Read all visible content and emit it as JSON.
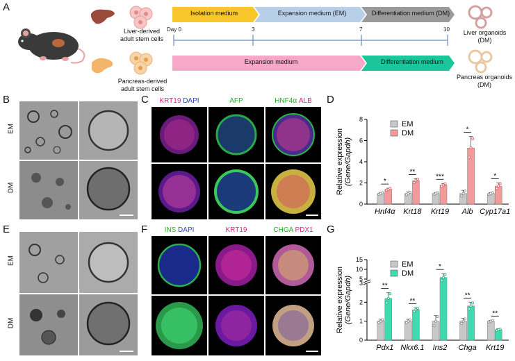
{
  "panels": {
    "A": "A",
    "B": "B",
    "C": "C",
    "D": "D",
    "E": "E",
    "F": "F",
    "G": "G"
  },
  "schematic": {
    "liver_cells": "Liver-derived\nadult stem cells",
    "pancreas_cells": "Pancreas-derived\nadult stem cells",
    "liver_bar": [
      "Isolation medium",
      "Expansion medium (EM)",
      "Differentiation medium (DM)"
    ],
    "pancreas_bar": [
      "Expansion medium",
      "Differentiation medium"
    ],
    "days": [
      "Day 0",
      "3",
      "7",
      "10"
    ],
    "liver_out": "Liver organoids\n(DM)",
    "pancreas_out": "Pancreas organoids\n(DM)",
    "colors": {
      "isolation": "#f7c62a",
      "expansion": "#b8cfe9",
      "differentiation": "#9a9a9a",
      "panc_expansion": "#f7a8c8",
      "panc_diff": "#1bc79a"
    }
  },
  "rows": {
    "em": "EM",
    "dm": "DM"
  },
  "C_channels": [
    {
      "parts": [
        {
          "t": "KRT19 ",
          "c": "#e0218a"
        },
        {
          "t": "DAPI",
          "c": "#2a3bd8"
        }
      ]
    },
    {
      "parts": [
        {
          "t": "AFP",
          "c": "#20b020"
        }
      ]
    },
    {
      "parts": [
        {
          "t": "HNF4α ",
          "c": "#20b020"
        },
        {
          "t": "ALB",
          "c": "#e0218a"
        }
      ]
    }
  ],
  "F_channels": [
    {
      "parts": [
        {
          "t": "INS ",
          "c": "#20b020"
        },
        {
          "t": "DAPI",
          "c": "#2a3bd8"
        }
      ]
    },
    {
      "parts": [
        {
          "t": "KRT19",
          "c": "#e0218a"
        }
      ]
    },
    {
      "parts": [
        {
          "t": "CHGA ",
          "c": "#20b020"
        },
        {
          "t": "PDX1",
          "c": "#e0218a"
        }
      ]
    }
  ],
  "chart_data": [
    {
      "panel": "D",
      "type": "bar",
      "ylabel": "Relative expression\n(Gene/Gapdh)",
      "ylim": [
        0,
        8
      ],
      "yticks": [
        0,
        2,
        4,
        6,
        8
      ],
      "categories": [
        "Hnf4α",
        "Krt18",
        "Krt19",
        "Alb",
        "Cyp17a1"
      ],
      "legend": [
        "EM",
        "DM"
      ],
      "series": [
        {
          "name": "EM",
          "values": [
            1.0,
            1.0,
            1.0,
            1.0,
            1.0
          ],
          "color": "#c8c8c8"
        },
        {
          "name": "DM",
          "values": [
            1.4,
            2.2,
            1.8,
            5.3,
            1.7
          ],
          "color": "#f59a9a"
        }
      ],
      "errors": {
        "EM": [
          0.1,
          0.15,
          0.1,
          0.3,
          0.1
        ],
        "DM": [
          0.1,
          0.2,
          0.15,
          1.1,
          0.3
        ]
      },
      "significance": [
        "*",
        "**",
        "***",
        "*",
        "*"
      ]
    },
    {
      "panel": "G",
      "type": "bar",
      "ylabel": "Relative expression\n(Gene/Gapdh)",
      "ylim": [
        0,
        15
      ],
      "yticks": [
        0,
        1,
        2,
        3,
        5,
        10,
        15
      ],
      "axis_break": true,
      "categories": [
        "Pdx1",
        "Nkx6.1",
        "Ins2",
        "Chga",
        "Krt19"
      ],
      "legend": [
        "EM",
        "DM"
      ],
      "series": [
        {
          "name": "EM",
          "values": [
            1.0,
            1.0,
            1.0,
            1.0,
            1.0
          ],
          "color": "#c8c8c8"
        },
        {
          "name": "DM",
          "values": [
            2.2,
            1.6,
            5.8,
            1.8,
            0.55
          ],
          "color": "#3ddcb0"
        }
      ],
      "errors": {
        "EM": [
          0.1,
          0.1,
          0.3,
          0.15,
          0.05
        ],
        "DM": [
          0.3,
          0.1,
          2.0,
          0.2,
          0.05
        ]
      },
      "significance": [
        "**",
        "**",
        "*",
        "**",
        "**"
      ]
    }
  ]
}
